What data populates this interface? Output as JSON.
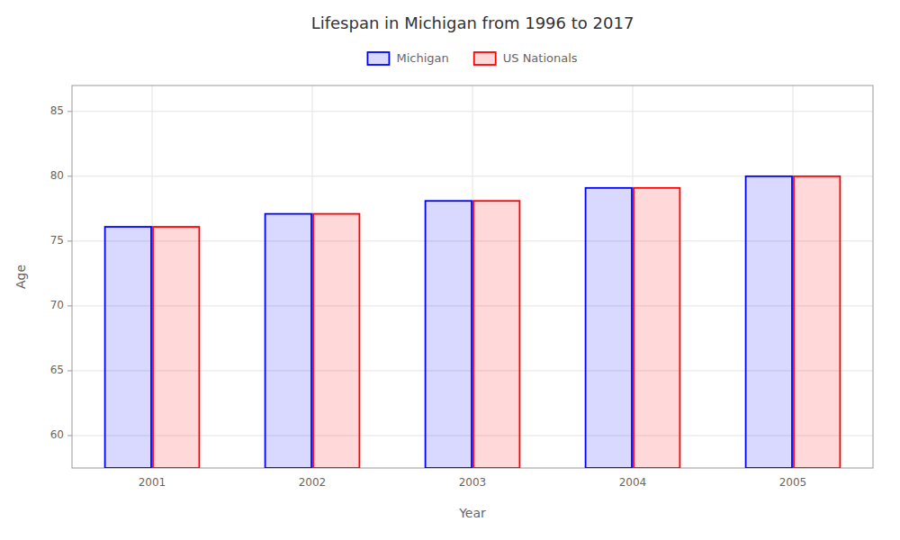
{
  "chart_data": {
    "type": "bar",
    "title": "Lifespan in Michigan from 1996 to 2017",
    "x_label": "Year",
    "y_label": "Age",
    "categories": [
      "2001",
      "2002",
      "2003",
      "2004",
      "2005"
    ],
    "series": [
      {
        "name": "Michigan",
        "color": "#0000ff",
        "values": [
          76.1,
          77.1,
          78.1,
          79.1,
          80.0
        ]
      },
      {
        "name": "US Nationals",
        "color": "#ff0000",
        "values": [
          76.1,
          77.1,
          78.1,
          79.1,
          80.0
        ]
      }
    ],
    "ylim": [
      57.5,
      87
    ],
    "yticks": [
      60,
      65,
      70,
      75,
      80,
      85
    ],
    "grid": true,
    "legend": "top"
  }
}
